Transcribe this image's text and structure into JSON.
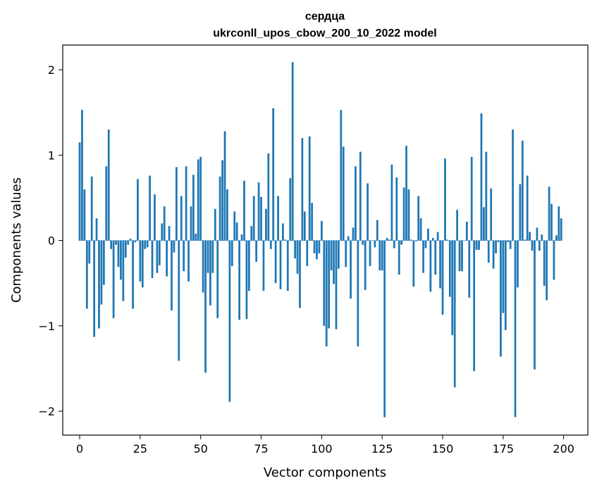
{
  "chart_data": {
    "type": "bar",
    "title": "сердца",
    "subtitle": "ukrconll_upos_cbow_200_10_2022 model",
    "xlabel": "Vector components",
    "ylabel": "Components values",
    "xlim": [
      -7,
      210
    ],
    "ylim": [
      -2.28,
      2.29
    ],
    "xticks": [
      0,
      25,
      50,
      75,
      100,
      125,
      150,
      175,
      200
    ],
    "yticks": [
      -2,
      -1,
      0,
      1,
      2
    ],
    "ytick_labels": [
      "−2",
      "−1",
      "0",
      "1",
      "2"
    ],
    "grid": false,
    "bar_color": "#1f77b4",
    "x": [
      0,
      1,
      2,
      3,
      4,
      5,
      6,
      7,
      8,
      9,
      10,
      11,
      12,
      13,
      14,
      15,
      16,
      17,
      18,
      19,
      20,
      21,
      22,
      23,
      24,
      25,
      26,
      27,
      28,
      29,
      30,
      31,
      32,
      33,
      34,
      35,
      36,
      37,
      38,
      39,
      40,
      41,
      42,
      43,
      44,
      45,
      46,
      47,
      48,
      49,
      50,
      51,
      52,
      53,
      54,
      55,
      56,
      57,
      58,
      59,
      60,
      61,
      62,
      63,
      64,
      65,
      66,
      67,
      68,
      69,
      70,
      71,
      72,
      73,
      74,
      75,
      76,
      77,
      78,
      79,
      80,
      81,
      82,
      83,
      84,
      85,
      86,
      87,
      88,
      89,
      90,
      91,
      92,
      93,
      94,
      95,
      96,
      97,
      98,
      99,
      100,
      101,
      102,
      103,
      104,
      105,
      106,
      107,
      108,
      109,
      110,
      111,
      112,
      113,
      114,
      115,
      116,
      117,
      118,
      119,
      120,
      121,
      122,
      123,
      124,
      125,
      126,
      127,
      128,
      129,
      130,
      131,
      132,
      133,
      134,
      135,
      136,
      137,
      138,
      139,
      140,
      141,
      142,
      143,
      144,
      145,
      146,
      147,
      148,
      149,
      150,
      151,
      152,
      153,
      154,
      155,
      156,
      157,
      158,
      159,
      160,
      161,
      162,
      163,
      164,
      165,
      166,
      167,
      168,
      169,
      170,
      171,
      172,
      173,
      174,
      175,
      176,
      177,
      178,
      179,
      180,
      181,
      182,
      183,
      184,
      185,
      186,
      187,
      188,
      189,
      190,
      191,
      192,
      193,
      194,
      195,
      196,
      197,
      198,
      199
    ],
    "values": [
      1.15,
      1.53,
      0.6,
      -0.8,
      -0.27,
      0.75,
      -1.13,
      0.26,
      -1.03,
      -0.75,
      -0.52,
      0.87,
      1.3,
      -0.1,
      -0.91,
      -0.05,
      -0.31,
      -0.46,
      -0.71,
      -0.2,
      -0.05,
      0.02,
      -0.8,
      -0.02,
      0.72,
      -0.48,
      -0.55,
      -0.1,
      -0.08,
      0.76,
      -0.44,
      0.54,
      -0.38,
      -0.29,
      0.2,
      0.4,
      -0.42,
      0.17,
      -0.82,
      -0.14,
      0.86,
      -1.41,
      0.52,
      -0.36,
      0.87,
      -0.48,
      0.4,
      0.77,
      0.08,
      0.95,
      0.98,
      -0.61,
      -1.55,
      -0.38,
      -0.76,
      -0.38,
      0.37,
      -0.91,
      0.75,
      0.94,
      1.28,
      0.6,
      -1.89,
      -0.3,
      0.34,
      0.21,
      -0.93,
      0.07,
      0.7,
      -0.92,
      -0.59,
      0.17,
      0.52,
      -0.25,
      0.68,
      0.51,
      -0.59,
      0.37,
      1.02,
      -0.1,
      1.55,
      -0.5,
      0.52,
      -0.57,
      0.2,
      0.01,
      -0.59,
      0.73,
      2.09,
      -0.21,
      -0.39,
      -0.79,
      1.2,
      0.34,
      -0.3,
      1.22,
      0.44,
      -0.15,
      -0.22,
      -0.15,
      0.23,
      -1.0,
      -1.24,
      -1.03,
      -0.35,
      -0.51,
      -1.04,
      -0.33,
      1.53,
      1.1,
      -0.31,
      0.05,
      -0.68,
      0.15,
      0.87,
      -1.24,
      1.04,
      -0.05,
      -0.58,
      0.67,
      -0.3,
      0.0,
      -0.08,
      0.24,
      -0.35,
      -0.35,
      -2.07,
      0.03,
      0.01,
      0.89,
      -0.09,
      0.74,
      -0.4,
      -0.05,
      0.62,
      1.11,
      0.6,
      0.01,
      -0.54,
      -0.01,
      0.52,
      0.26,
      -0.38,
      -0.09,
      0.14,
      -0.6,
      0.03,
      -0.4,
      0.1,
      -0.56,
      -0.87,
      0.96,
      0.01,
      -0.66,
      -1.11,
      -1.72,
      0.36,
      -0.36,
      -0.36,
      0.0,
      0.22,
      -0.67,
      0.98,
      -1.53,
      -0.11,
      -0.11,
      1.49,
      0.39,
      1.04,
      -0.26,
      0.61,
      -0.33,
      -0.15,
      -0.02,
      -1.36,
      -0.85,
      -1.05,
      -0.02,
      -0.1,
      1.3,
      -2.07,
      -0.55,
      0.66,
      1.17,
      0.01,
      0.76,
      0.1,
      -0.12,
      -1.51,
      0.15,
      -0.12,
      0.07,
      -0.53,
      -0.7,
      0.63,
      0.43,
      -0.46,
      0.06,
      0.4,
      0.26
    ]
  }
}
